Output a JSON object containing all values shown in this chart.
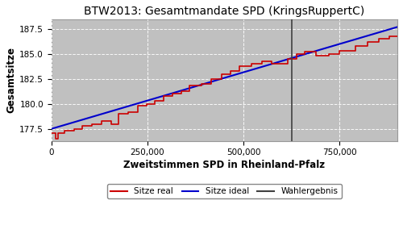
{
  "title": "BTW2013: Gesamtmandate SPD (KringsRuppertC)",
  "xlabel": "Zweitstimmen SPD in Rheinland-Pfalz",
  "ylabel": "Gesamtsitze",
  "plot_bg_color": "#C0C0C0",
  "fig_bg_color": "#FFFFFF",
  "x_min": 0,
  "x_max": 900000,
  "y_min": 176.3,
  "y_max": 188.5,
  "wahlergebnis_x": 625000,
  "ideal_start_y": 177.5,
  "ideal_end_y": 187.7,
  "legend_entries": [
    "Sitze real",
    "Sitze ideal",
    "Wahlergebnis"
  ],
  "line_colors": [
    "#cc0000",
    "#0000cc",
    "#404040"
  ],
  "grid_color": "#ffffff",
  "yticks": [
    177.5,
    180.0,
    182.5,
    185.0,
    187.5
  ],
  "xticks": [
    0,
    250000,
    500000,
    750000
  ],
  "segments": [
    [
      0,
      177.1
    ],
    [
      12000,
      177.1
    ],
    [
      12000,
      176.5
    ],
    [
      18000,
      176.5
    ],
    [
      18000,
      177.1
    ],
    [
      35000,
      177.1
    ],
    [
      35000,
      177.3
    ],
    [
      60000,
      177.3
    ],
    [
      60000,
      177.5
    ],
    [
      80000,
      177.5
    ],
    [
      80000,
      177.8
    ],
    [
      105000,
      177.8
    ],
    [
      105000,
      178.0
    ],
    [
      130000,
      178.0
    ],
    [
      130000,
      178.3
    ],
    [
      155000,
      178.3
    ],
    [
      155000,
      178.0
    ],
    [
      175000,
      178.0
    ],
    [
      175000,
      179.0
    ],
    [
      200000,
      179.0
    ],
    [
      200000,
      179.2
    ],
    [
      225000,
      179.2
    ],
    [
      225000,
      179.8
    ],
    [
      248000,
      179.8
    ],
    [
      248000,
      180.0
    ],
    [
      268000,
      180.0
    ],
    [
      268000,
      180.3
    ],
    [
      292000,
      180.3
    ],
    [
      292000,
      180.8
    ],
    [
      315000,
      180.8
    ],
    [
      315000,
      181.0
    ],
    [
      338000,
      181.0
    ],
    [
      338000,
      181.3
    ],
    [
      360000,
      181.3
    ],
    [
      360000,
      181.8
    ],
    [
      390000,
      181.8
    ],
    [
      390000,
      182.0
    ],
    [
      415000,
      182.0
    ],
    [
      415000,
      182.5
    ],
    [
      442000,
      182.5
    ],
    [
      442000,
      183.0
    ],
    [
      465000,
      183.0
    ],
    [
      465000,
      183.3
    ],
    [
      490000,
      183.3
    ],
    [
      490000,
      183.8
    ],
    [
      520000,
      183.8
    ],
    [
      520000,
      184.0
    ],
    [
      548000,
      184.0
    ],
    [
      548000,
      184.3
    ],
    [
      572000,
      184.3
    ],
    [
      572000,
      184.0
    ],
    [
      615000,
      184.0
    ],
    [
      615000,
      184.5
    ],
    [
      638000,
      184.5
    ],
    [
      638000,
      185.0
    ],
    [
      658000,
      185.0
    ],
    [
      658000,
      185.2
    ],
    [
      688000,
      185.2
    ],
    [
      688000,
      184.8
    ],
    [
      722000,
      184.8
    ],
    [
      722000,
      185.0
    ],
    [
      750000,
      185.0
    ],
    [
      750000,
      185.3
    ],
    [
      790000,
      185.3
    ],
    [
      790000,
      185.8
    ],
    [
      822000,
      185.8
    ],
    [
      822000,
      186.2
    ],
    [
      852000,
      186.2
    ],
    [
      852000,
      186.5
    ],
    [
      878000,
      186.5
    ],
    [
      878000,
      186.8
    ],
    [
      900000,
      186.8
    ]
  ]
}
